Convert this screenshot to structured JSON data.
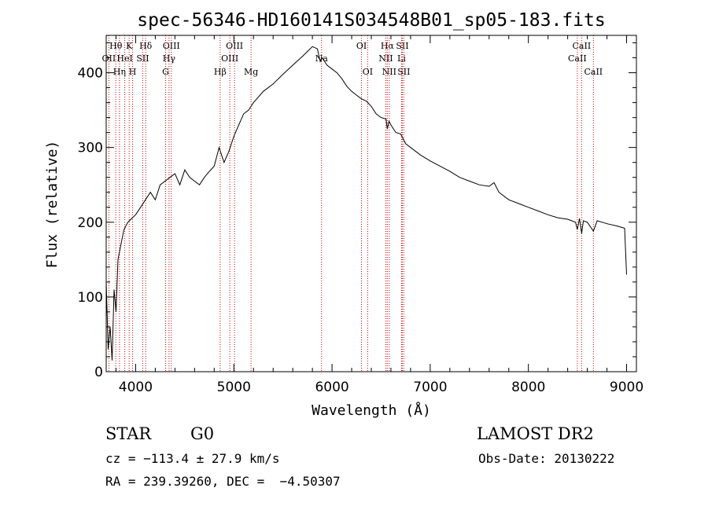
{
  "chart_data": {
    "type": "line",
    "title": "spec-56346-HD160141S034548B01_sp05-183.fits",
    "xlabel": "Wavelength (Å)",
    "ylabel": "Flux (relative)",
    "xlim": [
      3700,
      9100
    ],
    "ylim": [
      0,
      450
    ],
    "xticks": [
      4000,
      5000,
      6000,
      7000,
      8000,
      9000
    ],
    "yticks": [
      0,
      100,
      200,
      300,
      400
    ],
    "grid": false,
    "line_color": "#000000",
    "marker_color": "#cc0000",
    "series": [
      {
        "x": [
          3700,
          3720,
          3740,
          3760,
          3780,
          3800,
          3820,
          3850,
          3880,
          3920,
          3960,
          4000,
          4050,
          4100,
          4150,
          4200,
          4250,
          4300,
          4350,
          4400,
          4450,
          4500,
          4550,
          4600,
          4650,
          4700,
          4750,
          4800,
          4850,
          4900,
          4950,
          5000,
          5050,
          5100,
          5150,
          5200,
          5300,
          5400,
          5500,
          5600,
          5700,
          5800,
          5850,
          5880,
          5900,
          5950,
          6000,
          6050,
          6100,
          6150,
          6200,
          6250,
          6300,
          6350,
          6400,
          6450,
          6500,
          6550,
          6563,
          6580,
          6600,
          6650,
          6700,
          6750,
          6800,
          6900,
          7000,
          7100,
          7200,
          7300,
          7400,
          7500,
          7600,
          7650,
          7700,
          7800,
          7900,
          8000,
          8100,
          8200,
          8300,
          8400,
          8480,
          8498,
          8520,
          8542,
          8560,
          8600,
          8662,
          8700,
          8800,
          8900,
          8980,
          9000
        ],
        "y": [
          120,
          30,
          60,
          15,
          110,
          80,
          150,
          170,
          190,
          200,
          205,
          210,
          220,
          230,
          240,
          230,
          250,
          255,
          260,
          265,
          250,
          270,
          260,
          255,
          250,
          260,
          268,
          275,
          300,
          280,
          295,
          315,
          330,
          345,
          350,
          360,
          375,
          385,
          398,
          410,
          422,
          435,
          432,
          415,
          420,
          410,
          405,
          400,
          392,
          382,
          375,
          370,
          365,
          362,
          355,
          345,
          340,
          338,
          325,
          335,
          330,
          320,
          318,
          305,
          300,
          290,
          282,
          275,
          268,
          260,
          255,
          250,
          248,
          253,
          240,
          230,
          225,
          220,
          215,
          210,
          206,
          204,
          200,
          190,
          205,
          185,
          202,
          200,
          188,
          202,
          198,
          195,
          192,
          130
        ]
      }
    ],
    "lines": [
      {
        "label": "Hθ",
        "x": 3798,
        "row": 0
      },
      {
        "label": "K",
        "x": 3934,
        "row": 0
      },
      {
        "label": "Hδ",
        "x": 4102,
        "row": 0
      },
      {
        "label": "OIII",
        "x": 4363,
        "row": 0
      },
      {
        "label": "OIII",
        "x": 5007,
        "row": 0
      },
      {
        "label": "OI",
        "x": 6300,
        "row": 0
      },
      {
        "label": "Hα",
        "x": 6563,
        "row": 0
      },
      {
        "label": "SII",
        "x": 6716,
        "row": 0
      },
      {
        "label": "CaII",
        "x": 8542,
        "row": 0
      },
      {
        "label": "OII",
        "x": 3727,
        "row": 1
      },
      {
        "label": "HeI",
        "x": 3889,
        "row": 1
      },
      {
        "label": "SII",
        "x": 4072,
        "row": 1
      },
      {
        "label": "Hγ",
        "x": 4340,
        "row": 1
      },
      {
        "label": "OIII",
        "x": 4959,
        "row": 1
      },
      {
        "label": "Na",
        "x": 5893,
        "row": 1
      },
      {
        "label": "NII",
        "x": 6548,
        "row": 1
      },
      {
        "label": "Li",
        "x": 6708,
        "row": 1
      },
      {
        "label": "CaII",
        "x": 8498,
        "row": 1
      },
      {
        "label": "Hη",
        "x": 3835,
        "row": 2
      },
      {
        "label": "H",
        "x": 3969,
        "row": 2
      },
      {
        "label": "G",
        "x": 4305,
        "row": 2
      },
      {
        "label": "Hβ",
        "x": 4861,
        "row": 2
      },
      {
        "label": "Mg",
        "x": 5175,
        "row": 2
      },
      {
        "label": "OI",
        "x": 6363,
        "row": 2
      },
      {
        "label": "NII",
        "x": 6583,
        "row": 2
      },
      {
        "label": "SII",
        "x": 6731,
        "row": 2
      },
      {
        "label": "CaII",
        "x": 8662,
        "row": 2
      }
    ]
  },
  "info": {
    "class": "STAR",
    "subclass": "G0",
    "survey": "LAMOST DR2",
    "cz": "cz = −113.4 ± 27.9 km/s",
    "obs_date": "Obs-Date: 20130222",
    "radec": "RA = 239.39260, DEC =  −4.50307"
  }
}
